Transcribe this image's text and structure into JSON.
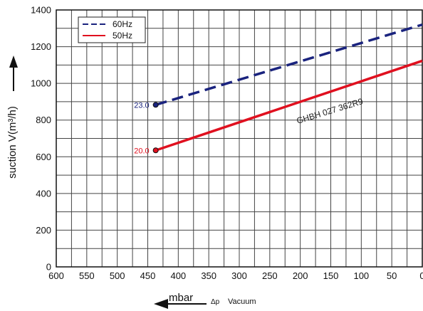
{
  "chart_data": {
    "type": "line",
    "ylabel": "suction V(m³/h)",
    "xlabel_unit": "mbar",
    "xlabel_delta": "Δp",
    "xlabel_text": "Vacuum",
    "x_ticks": [
      "600",
      "550",
      "500",
      "450",
      "400",
      "350",
      "300",
      "250",
      "200",
      "150",
      "100",
      "50",
      "0"
    ],
    "y_ticks": [
      "0",
      "200",
      "400",
      "600",
      "800",
      "1000",
      "1200",
      "1400"
    ],
    "xlim": [
      600,
      0
    ],
    "ylim": [
      0,
      1400
    ],
    "grid": true,
    "legend_position": "top-left",
    "model_label": "GHBH 027 362R9",
    "series": [
      {
        "name": "60Hz",
        "color": "#1a237e",
        "dash": true,
        "start_label": "23.0",
        "x": [
          437,
          0
        ],
        "y": [
          883,
          1320
        ]
      },
      {
        "name": "50Hz",
        "color": "#e0101f",
        "dash": false,
        "start_label": "20.0",
        "x": [
          437,
          0
        ],
        "y": [
          635,
          1123
        ]
      }
    ]
  }
}
